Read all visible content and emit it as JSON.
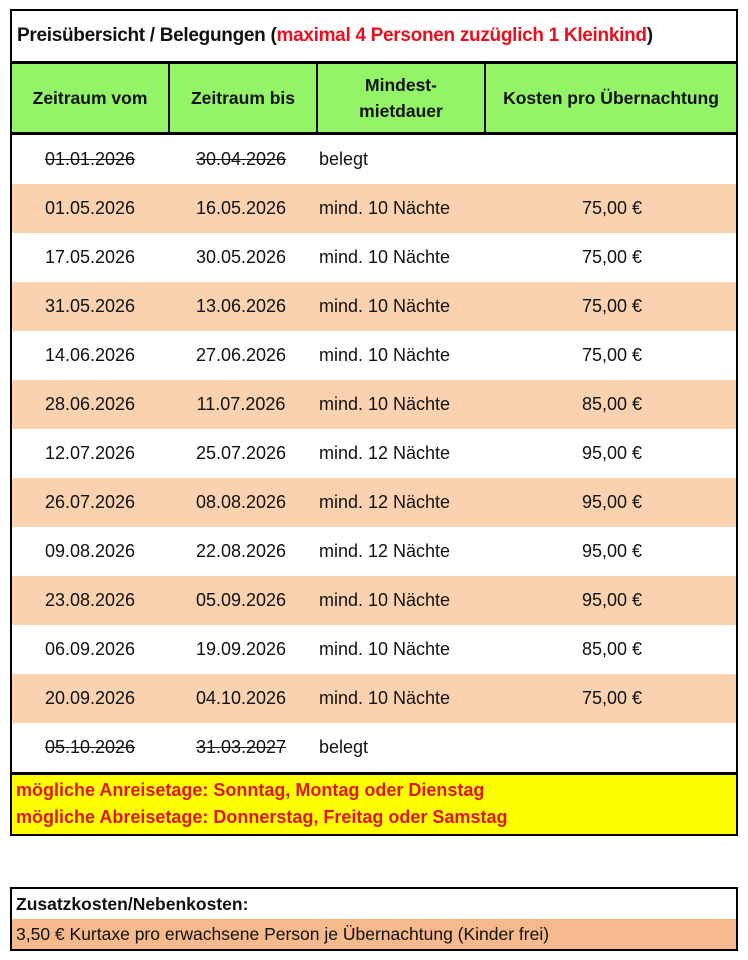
{
  "title": {
    "prefix": "Preisübersicht / Belegungen (",
    "highlight": "maximal 4 Personen zuzüglich 1 Kleinkind",
    "suffix": ")"
  },
  "headers": [
    "Zeitraum vom",
    "Zeitraum bis",
    "Mindest-\nmietdauer",
    "Kosten pro Übernachtung"
  ],
  "rows": [
    {
      "from": "01.01.2026",
      "to": "30.04.2026",
      "min": "belegt",
      "price": "",
      "booked": true
    },
    {
      "from": "01.05.2026",
      "to": "16.05.2026",
      "min": "mind. 10 Nächte",
      "price": "75,00 €"
    },
    {
      "from": "17.05.2026",
      "to": "30.05.2026",
      "min": "mind. 10 Nächte",
      "price": "75,00 €"
    },
    {
      "from": "31.05.2026",
      "to": "13.06.2026",
      "min": "mind. 10 Nächte",
      "price": "75,00 €"
    },
    {
      "from": "14.06.2026",
      "to": "27.06.2026",
      "min": "mind. 10 Nächte",
      "price": "75,00 €"
    },
    {
      "from": "28.06.2026",
      "to": "11.07.2026",
      "min": "mind. 10 Nächte",
      "price": "85,00 €"
    },
    {
      "from": "12.07.2026",
      "to": "25.07.2026",
      "min": "mind. 12 Nächte",
      "price": "95,00 €"
    },
    {
      "from": "26.07.2026",
      "to": "08.08.2026",
      "min": "mind. 12 Nächte",
      "price": "95,00 €"
    },
    {
      "from": "09.08.2026",
      "to": "22.08.2026",
      "min": "mind. 12 Nächte",
      "price": "95,00 €"
    },
    {
      "from": "23.08.2026",
      "to": "05.09.2026",
      "min": "mind. 10 Nächte",
      "price": "95,00 €"
    },
    {
      "from": "06.09.2026",
      "to": "19.09.2026",
      "min": "mind. 10 Nächte",
      "price": "85,00 €"
    },
    {
      "from": "20.09.2026",
      "to": "04.10.2026",
      "min": "mind. 10 Nächte",
      "price": "75,00 €"
    },
    {
      "from": "05.10.2026",
      "to": "31.03.2027",
      "min": "belegt",
      "price": "",
      "booked": true
    }
  ],
  "notes": [
    "mögliche Anreisetage: Sonntag, Montag oder Dienstag",
    "mögliche Abreisetage: Donnerstag, Freitag oder Samstag"
  ],
  "extra": {
    "title": "Zusatzkosten/Nebenkosten:",
    "item": "3,50 € Kurtaxe pro erwachsene Person je Übernachtung (Kinder frei)"
  },
  "colors": {
    "header": "#92f466",
    "stripe": "#fad2b0",
    "notes_bg": "#ffff00",
    "notes_text": "#e0161c",
    "extra_bg": "#f6b98c"
  }
}
